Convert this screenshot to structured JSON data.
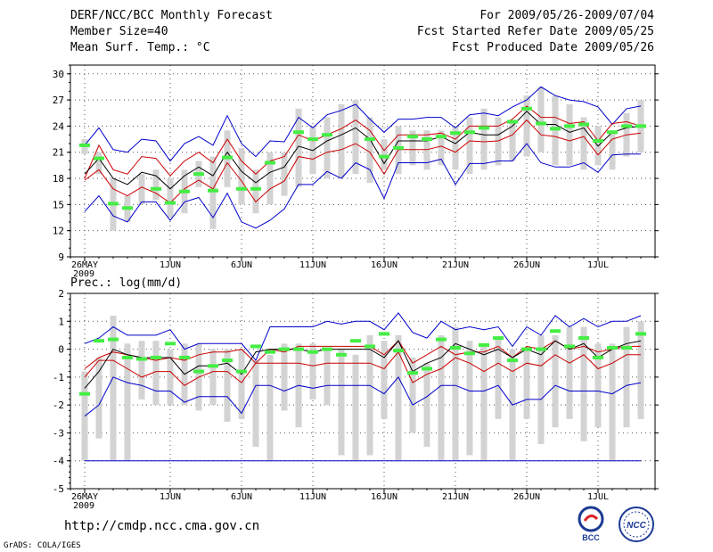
{
  "header": {
    "title": "DERF/NCC/BCC Monthly Forecast",
    "member_size": "Member Size=40",
    "variable_top": "Mean Surf. Temp.: °C",
    "period": "For 2009/05/26-2009/07/04",
    "started": "Fcst Started Refer Date 2009/05/25",
    "produced": "Fcst Produced Date 2009/05/26"
  },
  "footer": {
    "url": "http://cmdp.ncc.cma.gov.cn",
    "grads": "GrADS: COLA/IGES",
    "logo_bcc": "BCC",
    "logo_ncc": "NCC"
  },
  "colors": {
    "max_min": "#0000cc",
    "quartile": "#cc0000",
    "median": "#000000",
    "box": "#d3d3d3",
    "observed": "#44ee44",
    "grid": "#555555"
  },
  "chart_data": [
    {
      "type": "box",
      "label": "Mean Surf. Temp.: °C",
      "ylim": [
        9,
        31
      ],
      "yticks": [
        9,
        12,
        15,
        18,
        21,
        24,
        27,
        30
      ],
      "xticks": [
        {
          "day": 0,
          "label": "26MAY",
          "sub": "2009"
        },
        {
          "day": 6,
          "label": "1JUN"
        },
        {
          "day": 11,
          "label": "6JUN"
        },
        {
          "day": 16,
          "label": "11JUN"
        },
        {
          "day": 21,
          "label": "16JUN"
        },
        {
          "day": 26,
          "label": "21JUN"
        },
        {
          "day": 31,
          "label": "26JUN"
        },
        {
          "day": 36,
          "label": "1JUL"
        }
      ],
      "days": 40,
      "box_low": [
        20.8,
        18.5,
        12.0,
        13.0,
        15.0,
        15.5,
        13.5,
        14.0,
        17.0,
        12.2,
        17.0,
        15.0,
        14.0,
        15.0,
        16.0,
        17.0,
        18.5,
        18.0,
        18.0,
        18.5,
        17.5,
        19.0,
        18.5,
        19.5,
        19.0,
        19.5,
        19.0,
        18.5,
        19.0,
        19.5,
        20.0,
        20.5,
        21.0,
        19.5,
        19.5,
        19.0,
        19.5,
        19.0,
        20.5,
        21.0
      ],
      "box_high": [
        22.5,
        21.0,
        18.0,
        16.0,
        18.5,
        19.0,
        18.0,
        19.0,
        20.0,
        20.5,
        23.5,
        21.5,
        19.0,
        21.0,
        21.0,
        26.0,
        24.0,
        25.0,
        26.5,
        27.0,
        25.0,
        22.5,
        24.0,
        23.5,
        23.5,
        23.5,
        24.0,
        25.0,
        26.0,
        25.0,
        24.5,
        27.5,
        28.5,
        27.5,
        26.5,
        25.0,
        24.0,
        23.5,
        25.5,
        27.0
      ],
      "max": [
        21.8,
        23.8,
        21.3,
        21.0,
        22.5,
        22.3,
        20.0,
        22.0,
        22.8,
        21.8,
        25.2,
        22.0,
        20.5,
        22.3,
        22.2,
        25.0,
        23.8,
        25.3,
        25.8,
        26.5,
        24.8,
        23.3,
        24.8,
        24.8,
        25.0,
        25.0,
        23.8,
        25.3,
        25.5,
        25.2,
        26.2,
        27.0,
        28.5,
        27.5,
        27.0,
        26.8,
        26.2,
        24.2,
        26.0,
        26.3
      ],
      "q3": [
        18.0,
        21.8,
        19.0,
        18.5,
        20.5,
        20.3,
        18.3,
        20.0,
        21.0,
        19.8,
        22.5,
        20.0,
        18.5,
        20.0,
        20.5,
        23.0,
        22.3,
        23.0,
        23.7,
        24.7,
        23.5,
        21.2,
        23.0,
        23.0,
        23.0,
        23.2,
        22.5,
        24.0,
        24.0,
        24.0,
        24.8,
        26.3,
        25.0,
        25.0,
        24.3,
        24.5,
        22.3,
        24.3,
        24.5,
        24.0
      ],
      "median": [
        18.5,
        20.3,
        18.0,
        17.3,
        18.7,
        18.3,
        16.8,
        18.3,
        19.3,
        18.3,
        21.0,
        18.8,
        17.5,
        18.7,
        19.3,
        21.7,
        21.2,
        22.3,
        23.0,
        23.8,
        22.5,
        19.7,
        22.3,
        22.3,
        22.3,
        22.8,
        22.0,
        23.3,
        23.0,
        23.0,
        24.0,
        25.7,
        24.2,
        24.2,
        23.3,
        23.8,
        21.7,
        23.3,
        23.8,
        24.0
      ],
      "q1": [
        17.8,
        19.0,
        16.8,
        16.0,
        17.0,
        16.3,
        15.2,
        16.8,
        17.8,
        16.8,
        19.8,
        17.7,
        15.3,
        16.8,
        17.7,
        20.5,
        20.2,
        21.0,
        21.3,
        22.0,
        21.0,
        18.5,
        21.3,
        21.3,
        21.3,
        21.7,
        21.0,
        22.3,
        22.2,
        22.3,
        23.0,
        24.7,
        23.0,
        22.8,
        22.3,
        22.8,
        20.7,
        22.5,
        23.0,
        23.2
      ],
      "min": [
        14.2,
        16.0,
        13.7,
        13.0,
        15.3,
        15.3,
        13.2,
        15.3,
        15.8,
        13.5,
        16.3,
        13.0,
        12.3,
        13.2,
        14.5,
        17.3,
        17.3,
        18.8,
        18.0,
        19.8,
        19.0,
        15.7,
        19.8,
        19.8,
        19.8,
        20.2,
        17.3,
        19.7,
        19.7,
        20.0,
        20.0,
        22.0,
        19.8,
        19.3,
        19.3,
        19.8,
        18.7,
        20.7,
        20.8,
        20.8
      ],
      "observed": [
        21.8,
        20.3,
        15.1,
        14.6,
        null,
        16.8,
        15.2,
        16.5,
        18.5,
        16.6,
        20.4,
        16.8,
        16.8,
        19.8,
        null,
        23.3,
        22.5,
        23.0,
        null,
        null,
        22.5,
        20.5,
        21.5,
        22.8,
        22.5,
        22.8,
        23.2,
        23.3,
        23.8,
        null,
        24.5,
        26.0,
        24.3,
        23.7,
        24.0,
        24.2,
        22.3,
        23.3,
        24.0,
        24.0
      ]
    },
    {
      "type": "box",
      "label": "Prec.: log(mm/d)",
      "ylim": [
        -5,
        2
      ],
      "yticks": [
        -5,
        -4,
        -3,
        -2,
        -1,
        0,
        1,
        2
      ],
      "xticks": [
        {
          "day": 0,
          "label": "26MAY",
          "sub": "2009"
        },
        {
          "day": 6,
          "label": "1JUN"
        },
        {
          "day": 11,
          "label": "6JUN"
        },
        {
          "day": 16,
          "label": "11JUN"
        },
        {
          "day": 21,
          "label": "16JUN"
        },
        {
          "day": 26,
          "label": "21JUN"
        },
        {
          "day": 31,
          "label": "26JUN"
        },
        {
          "day": 36,
          "label": "1JUL"
        }
      ],
      "days": 40,
      "box_low": [
        -4.0,
        -3.2,
        -4.0,
        -4.0,
        -1.8,
        -2.0,
        -2.0,
        -2.0,
        -2.2,
        -2.0,
        -2.6,
        -2.5,
        -3.5,
        -4.0,
        -2.2,
        -2.8,
        -1.8,
        -2.0,
        -3.8,
        -4.0,
        -3.8,
        -2.5,
        -4.0,
        -3.0,
        -3.5,
        -4.0,
        -4.0,
        -3.8,
        -4.0,
        -2.5,
        -4.0,
        -2.5,
        -3.4,
        -2.8,
        -2.5,
        -3.3,
        -2.8,
        -4.0,
        -2.8,
        -2.5
      ],
      "box_high": [
        -0.8,
        -0.3,
        1.2,
        0.2,
        0.3,
        0.3,
        0.0,
        0.2,
        0.2,
        0.0,
        0.0,
        0.0,
        -0.4,
        -0.2,
        0.2,
        0.2,
        0.2,
        0.0,
        0.0,
        -0.2,
        0.5,
        0.3,
        0.5,
        -0.3,
        -0.5,
        0.5,
        0.8,
        0.3,
        0.2,
        0.4,
        0.0,
        0.0,
        0.5,
        0.5,
        0.8,
        0.8,
        0.2,
        0.2,
        0.8,
        1.0
      ],
      "max": [
        0.2,
        0.4,
        0.8,
        0.5,
        0.5,
        0.5,
        0.7,
        0.0,
        0.2,
        0.2,
        0.2,
        0.2,
        -0.4,
        0.8,
        0.8,
        0.8,
        0.8,
        1.0,
        0.9,
        1.0,
        1.0,
        0.7,
        1.3,
        0.6,
        0.4,
        1.0,
        0.7,
        0.8,
        0.7,
        0.8,
        0.1,
        0.8,
        0.5,
        1.2,
        0.8,
        1.1,
        0.8,
        1.0,
        1.0,
        1.2
      ],
      "q3": [
        -0.7,
        -0.3,
        -0.1,
        -0.2,
        -0.3,
        -0.4,
        -0.3,
        -0.4,
        -0.2,
        -0.1,
        -0.1,
        0.0,
        -0.5,
        0.0,
        -0.1,
        0.1,
        0.1,
        0.1,
        0.1,
        0.1,
        0.1,
        -0.2,
        0.3,
        -0.5,
        -0.2,
        0.1,
        -0.2,
        -0.1,
        -0.1,
        0.1,
        -0.3,
        0.1,
        0.0,
        0.3,
        0.0,
        0.1,
        -0.1,
        0.0,
        0.1,
        0.1
      ],
      "median": [
        -1.4,
        -0.8,
        0.0,
        -0.2,
        -0.3,
        -0.3,
        -0.3,
        -0.9,
        -0.6,
        -0.6,
        -0.5,
        -0.9,
        -0.1,
        0.0,
        0.0,
        0.0,
        -0.1,
        0.0,
        0.0,
        0.0,
        0.0,
        -0.3,
        0.3,
        -0.8,
        -0.5,
        -0.3,
        0.2,
        0.0,
        -0.2,
        0.0,
        -0.3,
        0.0,
        -0.2,
        0.3,
        0.0,
        0.2,
        -0.3,
        0.0,
        0.2,
        0.3
      ],
      "q1": [
        -1.0,
        -0.4,
        -0.4,
        -0.7,
        -1.0,
        -0.8,
        -0.8,
        -1.3,
        -1.0,
        -0.8,
        -0.8,
        -1.2,
        -0.5,
        -0.5,
        -0.5,
        -0.5,
        -0.6,
        -0.5,
        -0.5,
        -0.5,
        -0.5,
        -0.7,
        -0.1,
        -1.2,
        -0.9,
        -0.7,
        -0.3,
        -0.5,
        -0.8,
        -0.5,
        -0.8,
        -0.5,
        -0.6,
        -0.2,
        -0.5,
        -0.2,
        -0.7,
        -0.5,
        -0.2,
        -0.2
      ],
      "min": [
        -2.4,
        -2.0,
        -1.0,
        -1.2,
        -1.3,
        -1.5,
        -1.5,
        -1.9,
        -1.7,
        -1.7,
        -1.7,
        -2.3,
        -1.3,
        -1.3,
        -1.5,
        -1.3,
        -1.4,
        -1.3,
        -1.3,
        -1.3,
        -1.3,
        -1.6,
        -1.0,
        -2.0,
        -1.7,
        -1.3,
        -1.3,
        -1.5,
        -1.5,
        -1.3,
        -2.0,
        -1.8,
        -1.8,
        -1.3,
        -1.5,
        -1.5,
        -1.5,
        -1.6,
        -1.3,
        -1.2
      ],
      "observed": [
        -1.6,
        0.3,
        0.35,
        -0.3,
        -0.35,
        -0.3,
        0.2,
        -0.3,
        -0.8,
        -0.6,
        -0.4,
        -0.8,
        0.1,
        -0.1,
        0.0,
        0.0,
        -0.1,
        0.0,
        -0.2,
        0.3,
        0.1,
        0.55,
        -0.05,
        -0.85,
        -0.7,
        0.35,
        0.05,
        -0.15,
        0.15,
        0.4,
        -0.4,
        0.0,
        0.0,
        0.65,
        0.1,
        0.4,
        -0.3,
        0.05,
        0.05,
        0.55
      ]
    }
  ]
}
